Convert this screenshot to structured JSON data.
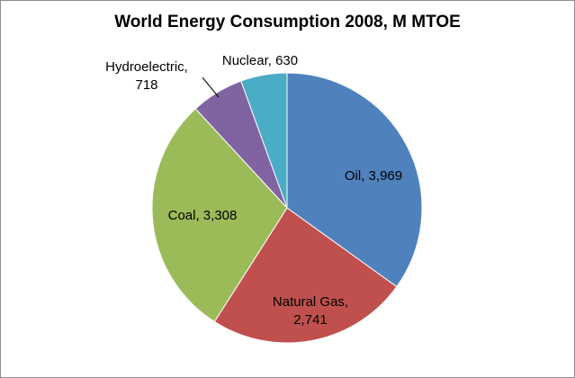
{
  "chart_data": {
    "type": "pie",
    "title": "World Energy Consumption 2008, M MTOE",
    "slices": [
      {
        "label": "Oil",
        "value": 3969,
        "display": "3,969",
        "color": "#4f81bd"
      },
      {
        "label": "Natural Gas",
        "value": 2741,
        "display": "2,741",
        "color": "#c0504d"
      },
      {
        "label": "Coal",
        "value": 3308,
        "display": "3,308",
        "color": "#9bbb59"
      },
      {
        "label": "Hydroelectric",
        "value": 718,
        "display": "718",
        "color": "#8064a2"
      },
      {
        "label": "Nuclear",
        "value": 630,
        "display": "630",
        "color": "#4bacc6"
      }
    ],
    "legend": "none",
    "start": "12 o'clock, clockwise"
  }
}
